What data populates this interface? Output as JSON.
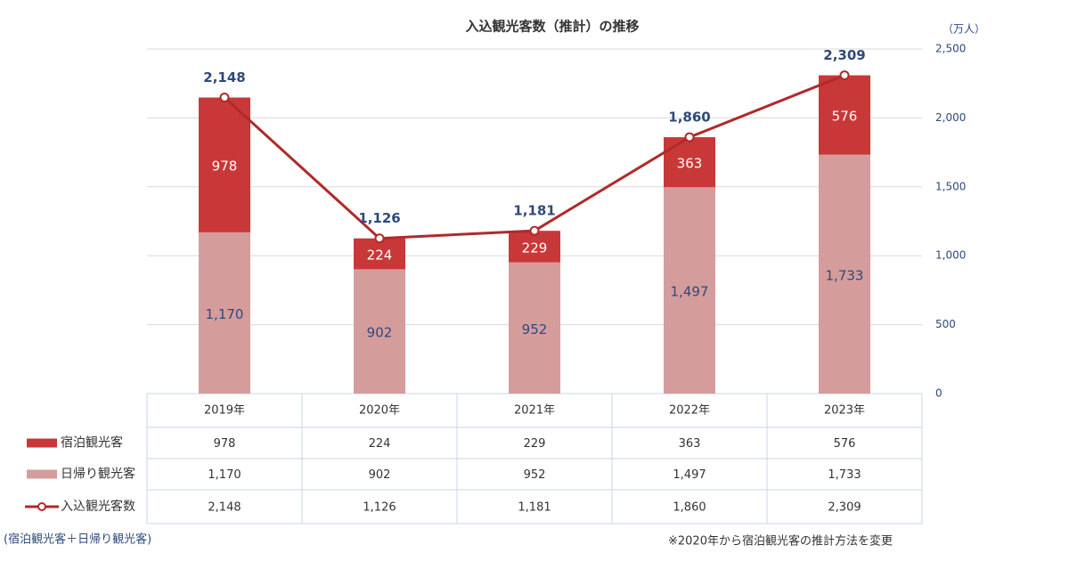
{
  "chart_data": {
    "type": "bar-line",
    "title": "入込観光客数（推計）の推移",
    "y_unit": "（万人）",
    "categories": [
      "2019年",
      "2020年",
      "2021年",
      "2022年",
      "2023年"
    ],
    "series": [
      {
        "name": "宿泊観光客",
        "type": "bar",
        "color": "#c93838",
        "values": [
          978,
          224,
          229,
          363,
          576
        ],
        "value_labels": [
          "978",
          "224",
          "229",
          "363",
          "576"
        ]
      },
      {
        "name": "日帰り観光客",
        "type": "bar",
        "color": "#d59c9c",
        "values": [
          1170,
          902,
          952,
          1497,
          1733
        ],
        "value_labels": [
          "1,170",
          "902",
          "952",
          "1,497",
          "1,733"
        ]
      },
      {
        "name": "入込観光客数",
        "type": "line",
        "color": "#b02a2a",
        "values": [
          2148,
          1126,
          1181,
          1860,
          2309
        ],
        "value_labels": [
          "2,148",
          "1,126",
          "1,181",
          "1,860",
          "2,309"
        ]
      }
    ],
    "ylim": [
      0,
      2500
    ],
    "yticks": [
      0,
      500,
      {
        "value": 1000,
        "label": "1,000"
      },
      {
        "value": 1500,
        "label": "1,500"
      },
      {
        "value": 2000,
        "label": "2,000"
      },
      {
        "value": 2500,
        "label": "2,500"
      }
    ],
    "grid": true,
    "notes": [
      "(宿泊観光客＋日帰り観光客)",
      "※2020年から宿泊観光客の推計方法を変更"
    ]
  }
}
